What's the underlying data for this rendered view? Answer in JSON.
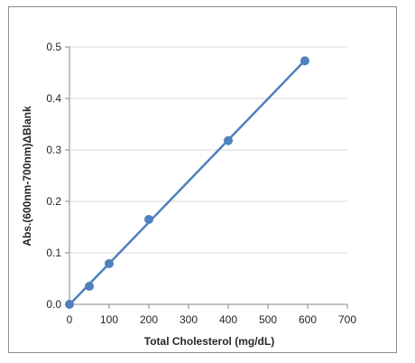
{
  "chart_data": {
    "type": "scatter",
    "title": "",
    "xlabel": "Total Cholesterol (mg/dL)",
    "ylabel": "Abs.(600nm-700nm)ΔBlank",
    "xlim": [
      0,
      700
    ],
    "ylim": [
      0,
      0.5
    ],
    "x_ticks": [
      0,
      100,
      200,
      300,
      400,
      500,
      600,
      700
    ],
    "y_ticks": [
      0.0,
      0.1,
      0.2,
      0.3,
      0.4,
      0.5
    ],
    "x_tick_labels": [
      "0",
      "100",
      "200",
      "300",
      "400",
      "500",
      "600",
      "700"
    ],
    "y_tick_labels": [
      "0.0",
      "0.1",
      "0.2",
      "0.3",
      "0.4",
      "0.5"
    ],
    "grid": "horizontal",
    "legend": "none",
    "series": [
      {
        "points": [
          {
            "x": 0,
            "y": 0.0
          },
          {
            "x": 50,
            "y": 0.035
          },
          {
            "x": 100,
            "y": 0.079
          },
          {
            "x": 200,
            "y": 0.165
          },
          {
            "x": 400,
            "y": 0.318
          },
          {
            "x": 593,
            "y": 0.473
          }
        ],
        "trendline": "linear",
        "color": "#4f81bd"
      }
    ],
    "colors": {
      "marker": "#4f81bd",
      "line": "#4f81bd",
      "grid": "#d9d9d9",
      "axis": "#868686",
      "text": "#262626"
    }
  }
}
